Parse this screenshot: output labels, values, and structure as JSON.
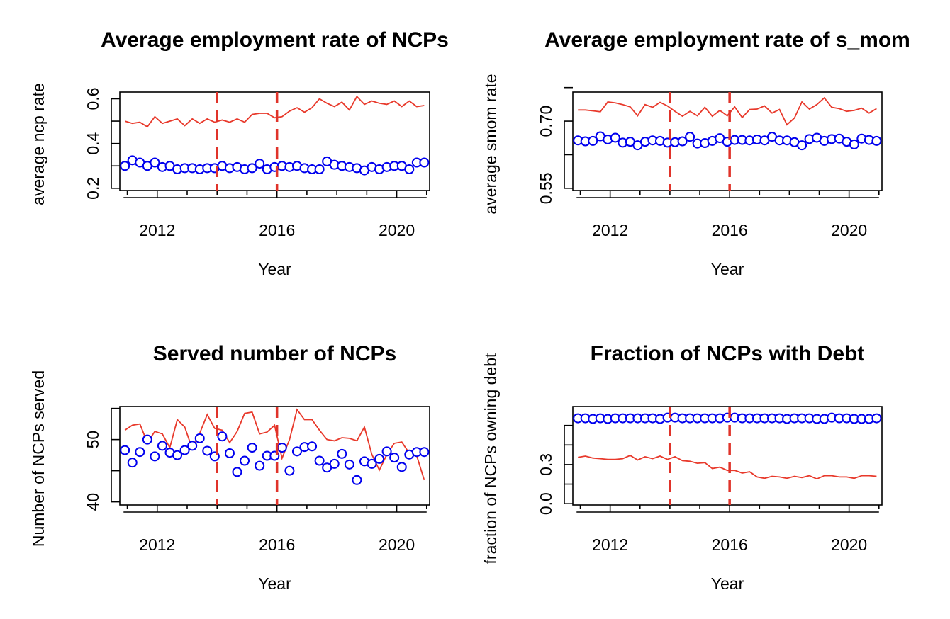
{
  "colors": {
    "line": "#e8392b",
    "points": "#0000ee",
    "vline": "#e0332a",
    "axis": "#000000"
  },
  "chart_data": [
    {
      "type": "line",
      "title": "Average employment rate of NCPs",
      "xlabel": "Year",
      "ylabel": "average ncp rate",
      "xlim": [
        2010.75,
        2021.1
      ],
      "ylim": [
        0.19,
        0.63
      ],
      "x_ticks": [
        2012,
        2016,
        2020
      ],
      "y_ticks": [
        0.2,
        0.3,
        0.4,
        0.5,
        0.6
      ],
      "y_tick_labels": [
        "0.2",
        "",
        "0.4",
        "",
        "0.6"
      ],
      "vlines": [
        2014,
        2016
      ],
      "grid": false,
      "x": [
        2010.92,
        2011.17,
        2011.42,
        2011.67,
        2011.92,
        2012.17,
        2012.42,
        2012.67,
        2012.92,
        2013.17,
        2013.42,
        2013.67,
        2013.92,
        2014.17,
        2014.42,
        2014.67,
        2014.92,
        2015.17,
        2015.42,
        2015.67,
        2015.92,
        2016.17,
        2016.42,
        2016.67,
        2016.92,
        2017.17,
        2017.42,
        2017.67,
        2017.92,
        2018.17,
        2018.42,
        2018.67,
        2018.92,
        2019.17,
        2019.42,
        2019.67,
        2019.92,
        2020.17,
        2020.42,
        2020.67,
        2020.92
      ],
      "series": [
        {
          "kind": "line",
          "values": [
            0.5,
            0.49,
            0.495,
            0.475,
            0.52,
            0.49,
            0.5,
            0.51,
            0.48,
            0.51,
            0.49,
            0.51,
            0.495,
            0.505,
            0.495,
            0.51,
            0.495,
            0.53,
            0.535,
            0.535,
            0.515,
            0.52,
            0.545,
            0.56,
            0.54,
            0.56,
            0.6,
            0.58,
            0.565,
            0.585,
            0.55,
            0.61,
            0.575,
            0.59,
            0.58,
            0.575,
            0.59,
            0.565,
            0.59,
            0.565,
            0.57
          ]
        },
        {
          "kind": "points",
          "values": [
            0.3,
            0.325,
            0.315,
            0.3,
            0.315,
            0.295,
            0.3,
            0.285,
            0.29,
            0.29,
            0.285,
            0.29,
            0.29,
            0.3,
            0.29,
            0.295,
            0.285,
            0.29,
            0.31,
            0.285,
            0.295,
            0.3,
            0.295,
            0.3,
            0.29,
            0.285,
            0.285,
            0.32,
            0.305,
            0.3,
            0.295,
            0.29,
            0.28,
            0.295,
            0.285,
            0.295,
            0.3,
            0.3,
            0.285,
            0.315,
            0.315
          ]
        }
      ]
    },
    {
      "type": "line",
      "title": "Average employment rate of s_mom",
      "xlabel": "Year",
      "ylabel": "average smom rate",
      "xlim": [
        2010.75,
        2021.1
      ],
      "ylim": [
        0.545,
        0.765
      ],
      "x_ticks": [
        2012,
        2016,
        2020
      ],
      "y_ticks": [
        0.55,
        0.625,
        0.7,
        0.775
      ],
      "y_tick_labels": [
        "0.55",
        "",
        "0.70",
        ""
      ],
      "vlines": [
        2014,
        2016
      ],
      "grid": false,
      "x": [
        2010.92,
        2011.17,
        2011.42,
        2011.67,
        2011.92,
        2012.17,
        2012.42,
        2012.67,
        2012.92,
        2013.17,
        2013.42,
        2013.67,
        2013.92,
        2014.17,
        2014.42,
        2014.67,
        2014.92,
        2015.17,
        2015.42,
        2015.67,
        2015.92,
        2016.17,
        2016.42,
        2016.67,
        2016.92,
        2017.17,
        2017.42,
        2017.67,
        2017.92,
        2018.17,
        2018.42,
        2018.67,
        2018.92,
        2019.17,
        2019.42,
        2019.67,
        2019.92,
        2020.17,
        2020.42,
        2020.67,
        2020.92
      ],
      "series": [
        {
          "kind": "line",
          "values": [
            0.725,
            0.725,
            0.723,
            0.721,
            0.743,
            0.741,
            0.737,
            0.732,
            0.712,
            0.737,
            0.731,
            0.742,
            0.734,
            0.722,
            0.711,
            0.722,
            0.712,
            0.731,
            0.711,
            0.724,
            0.712,
            0.732,
            0.708,
            0.726,
            0.727,
            0.734,
            0.718,
            0.726,
            0.692,
            0.707,
            0.743,
            0.727,
            0.737,
            0.752,
            0.731,
            0.728,
            0.722,
            0.724,
            0.729,
            0.718,
            0.728
          ]
        },
        {
          "kind": "points",
          "values": [
            0.657,
            0.655,
            0.656,
            0.666,
            0.659,
            0.663,
            0.652,
            0.654,
            0.646,
            0.654,
            0.657,
            0.656,
            0.652,
            0.653,
            0.655,
            0.665,
            0.65,
            0.651,
            0.656,
            0.662,
            0.654,
            0.658,
            0.658,
            0.657,
            0.659,
            0.657,
            0.665,
            0.657,
            0.657,
            0.653,
            0.646,
            0.66,
            0.663,
            0.656,
            0.66,
            0.661,
            0.654,
            0.648,
            0.661,
            0.658,
            0.656
          ]
        }
      ]
    },
    {
      "type": "line",
      "title": "Served number of NCPs",
      "xlabel": "Year",
      "ylabel": "Number of NCPs served",
      "xlim": [
        2010.75,
        2021.1
      ],
      "ylim": [
        39.5,
        55.3
      ],
      "x_ticks": [
        2012,
        2016,
        2020
      ],
      "y_ticks": [
        40,
        45,
        50,
        55
      ],
      "y_tick_labels": [
        "40",
        "",
        "50",
        ""
      ],
      "vlines": [
        2014,
        2016
      ],
      "grid": false,
      "x": [
        2010.92,
        2011.17,
        2011.42,
        2011.67,
        2011.92,
        2012.17,
        2012.42,
        2012.67,
        2012.92,
        2013.17,
        2013.42,
        2013.67,
        2013.92,
        2014.17,
        2014.42,
        2014.67,
        2014.92,
        2015.17,
        2015.42,
        2015.67,
        2015.92,
        2016.17,
        2016.42,
        2016.67,
        2016.92,
        2017.17,
        2017.42,
        2017.67,
        2017.92,
        2018.17,
        2018.42,
        2018.67,
        2018.92,
        2019.17,
        2019.42,
        2019.67,
        2019.92,
        2020.17,
        2020.42,
        2020.67,
        2020.92
      ],
      "series": [
        {
          "kind": "line",
          "values": [
            51.5,
            52.3,
            52.5,
            49.5,
            51.3,
            50.9,
            48.7,
            53.2,
            52.0,
            48.5,
            51.0,
            54.0,
            51.8,
            51.5,
            49.5,
            51.3,
            54.2,
            54.4,
            50.9,
            51.2,
            52.3,
            47.0,
            50.0,
            54.8,
            53.2,
            53.2,
            51.5,
            50.0,
            49.8,
            50.3,
            50.2,
            49.8,
            52.0,
            47.6,
            45.1,
            47.6,
            49.4,
            49.6,
            47.8,
            47.4,
            43.5
          ]
        },
        {
          "kind": "points",
          "values": [
            48.3,
            46.3,
            48.0,
            50.0,
            47.3,
            49.0,
            47.9,
            47.5,
            48.3,
            49.0,
            50.2,
            48.2,
            47.3,
            50.5,
            47.8,
            44.8,
            46.6,
            48.7,
            45.8,
            47.4,
            47.4,
            48.7,
            45.0,
            48.1,
            48.8,
            48.9,
            46.6,
            45.5,
            46.1,
            47.7,
            46.0,
            43.5,
            46.5,
            46.1,
            46.9,
            48.1,
            47.1,
            45.6,
            47.6,
            48.0,
            48.0
          ]
        }
      ]
    },
    {
      "type": "line",
      "title": "Fraction of NCPs with Debt",
      "xlabel": "Year",
      "ylabel": "fraction of NCPs owning debt",
      "xlim": [
        2010.75,
        2021.1
      ],
      "ylim": [
        -0.01,
        0.745
      ],
      "x_ticks": [
        2012,
        2016,
        2020
      ],
      "y_ticks": [
        0.0,
        0.15,
        0.3,
        0.45,
        0.6
      ],
      "y_tick_labels": [
        "0.0",
        "",
        "0.3",
        "",
        ""
      ],
      "vlines": [
        2014,
        2016
      ],
      "grid": false,
      "x": [
        2010.92,
        2011.17,
        2011.42,
        2011.67,
        2011.92,
        2012.17,
        2012.42,
        2012.67,
        2012.92,
        2013.17,
        2013.42,
        2013.67,
        2013.92,
        2014.17,
        2014.42,
        2014.67,
        2014.92,
        2015.17,
        2015.42,
        2015.67,
        2015.92,
        2016.17,
        2016.42,
        2016.67,
        2016.92,
        2017.17,
        2017.42,
        2017.67,
        2017.92,
        2018.17,
        2018.42,
        2018.67,
        2018.92,
        2019.17,
        2019.42,
        2019.67,
        2019.92,
        2020.17,
        2020.42,
        2020.67,
        2020.92
      ],
      "series": [
        {
          "kind": "line",
          "values": [
            0.355,
            0.365,
            0.35,
            0.345,
            0.34,
            0.34,
            0.345,
            0.37,
            0.335,
            0.36,
            0.345,
            0.365,
            0.34,
            0.36,
            0.33,
            0.325,
            0.31,
            0.315,
            0.27,
            0.28,
            0.255,
            0.255,
            0.235,
            0.245,
            0.205,
            0.195,
            0.21,
            0.205,
            0.195,
            0.21,
            0.2,
            0.215,
            0.19,
            0.215,
            0.215,
            0.205,
            0.205,
            0.195,
            0.215,
            0.215,
            0.21
          ]
        },
        {
          "kind": "points",
          "values": [
            0.655,
            0.655,
            0.65,
            0.655,
            0.65,
            0.655,
            0.655,
            0.655,
            0.655,
            0.655,
            0.655,
            0.65,
            0.66,
            0.66,
            0.655,
            0.655,
            0.655,
            0.655,
            0.655,
            0.655,
            0.66,
            0.66,
            0.655,
            0.655,
            0.655,
            0.655,
            0.655,
            0.655,
            0.65,
            0.655,
            0.655,
            0.655,
            0.65,
            0.65,
            0.66,
            0.655,
            0.655,
            0.65,
            0.65,
            0.65,
            0.655
          ]
        }
      ]
    }
  ]
}
